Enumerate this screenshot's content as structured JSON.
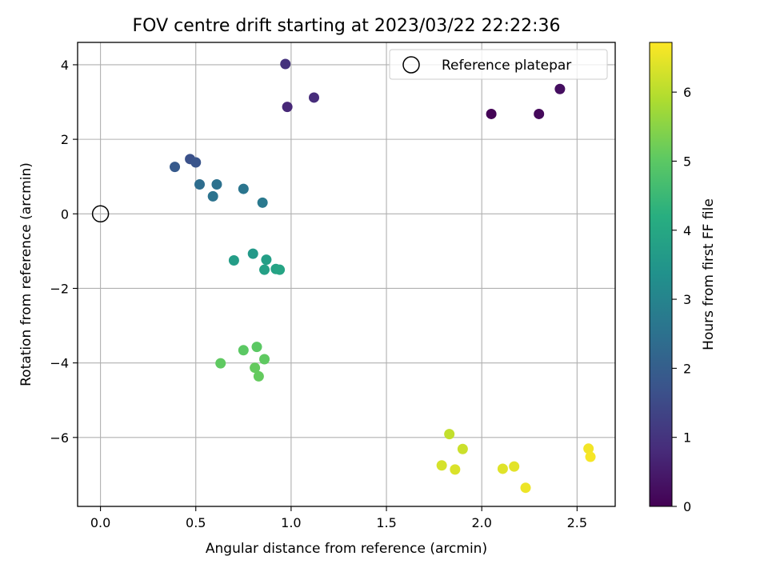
{
  "chart_data": {
    "type": "scatter",
    "title": "FOV centre drift starting at 2023/03/22 22:22:36",
    "xlabel": "Angular distance from reference (arcmin)",
    "ylabel": "Rotation from reference (arcmin)",
    "xlim": [
      -0.12,
      2.7
    ],
    "ylim": [
      -7.85,
      4.6
    ],
    "xticks": [
      0.0,
      0.5,
      1.0,
      1.5,
      2.0,
      2.5
    ],
    "xtick_labels": [
      "0.0",
      "0.5",
      "1.0",
      "1.5",
      "2.0",
      "2.5"
    ],
    "yticks": [
      -6,
      -4,
      -2,
      0,
      2,
      4
    ],
    "ytick_labels": [
      "−6",
      "−4",
      "−2",
      "0",
      "2",
      "4"
    ],
    "grid": true,
    "legend": {
      "placement": "top-right",
      "entries": [
        "Reference platepar"
      ]
    },
    "reference_point": {
      "x": 0.0,
      "y": 0.0
    },
    "colorbar": {
      "label": "Hours from first FF file",
      "range": [
        0,
        6.72
      ],
      "ticks": [
        0,
        1,
        2,
        3,
        4,
        5,
        6
      ],
      "tick_labels": [
        "0",
        "1",
        "2",
        "3",
        "4",
        "5",
        "6"
      ],
      "colormap": "viridis"
    },
    "points": [
      {
        "x": 2.05,
        "y": 2.68,
        "hours": 0.05
      },
      {
        "x": 2.3,
        "y": 2.68,
        "hours": 0.15
      },
      {
        "x": 2.41,
        "y": 3.35,
        "hours": 0.25
      },
      {
        "x": 0.98,
        "y": 2.87,
        "hours": 0.75
      },
      {
        "x": 1.12,
        "y": 3.12,
        "hours": 0.85
      },
      {
        "x": 0.97,
        "y": 4.02,
        "hours": 0.95
      },
      {
        "x": 0.47,
        "y": 1.47,
        "hours": 1.65
      },
      {
        "x": 0.5,
        "y": 1.38,
        "hours": 1.75
      },
      {
        "x": 0.39,
        "y": 1.26,
        "hours": 1.9
      },
      {
        "x": 0.52,
        "y": 0.79,
        "hours": 2.4
      },
      {
        "x": 0.61,
        "y": 0.79,
        "hours": 2.5
      },
      {
        "x": 0.59,
        "y": 0.47,
        "hours": 2.55
      },
      {
        "x": 0.75,
        "y": 0.67,
        "hours": 2.6
      },
      {
        "x": 0.85,
        "y": 0.3,
        "hours": 2.7
      },
      {
        "x": 0.8,
        "y": -1.07,
        "hours": 3.6
      },
      {
        "x": 0.7,
        "y": -1.25,
        "hours": 3.7
      },
      {
        "x": 0.87,
        "y": -1.23,
        "hours": 3.75
      },
      {
        "x": 0.86,
        "y": -1.5,
        "hours": 3.8
      },
      {
        "x": 0.92,
        "y": -1.48,
        "hours": 3.85
      },
      {
        "x": 0.94,
        "y": -1.5,
        "hours": 3.9
      },
      {
        "x": 0.75,
        "y": -3.66,
        "hours": 5.0
      },
      {
        "x": 0.82,
        "y": -3.57,
        "hours": 5.0
      },
      {
        "x": 0.86,
        "y": -3.9,
        "hours": 5.05
      },
      {
        "x": 0.63,
        "y": -4.01,
        "hours": 5.05
      },
      {
        "x": 0.81,
        "y": -4.13,
        "hours": 5.1
      },
      {
        "x": 0.83,
        "y": -4.36,
        "hours": 5.1
      },
      {
        "x": 1.83,
        "y": -5.91,
        "hours": 6.1
      },
      {
        "x": 1.9,
        "y": -6.31,
        "hours": 6.2
      },
      {
        "x": 1.79,
        "y": -6.75,
        "hours": 6.3
      },
      {
        "x": 1.86,
        "y": -6.86,
        "hours": 6.35
      },
      {
        "x": 2.11,
        "y": -6.84,
        "hours": 6.4
      },
      {
        "x": 2.17,
        "y": -6.78,
        "hours": 6.45
      },
      {
        "x": 2.23,
        "y": -7.35,
        "hours": 6.55
      },
      {
        "x": 2.56,
        "y": -6.3,
        "hours": 6.6
      },
      {
        "x": 2.57,
        "y": -6.52,
        "hours": 6.65
      }
    ]
  }
}
